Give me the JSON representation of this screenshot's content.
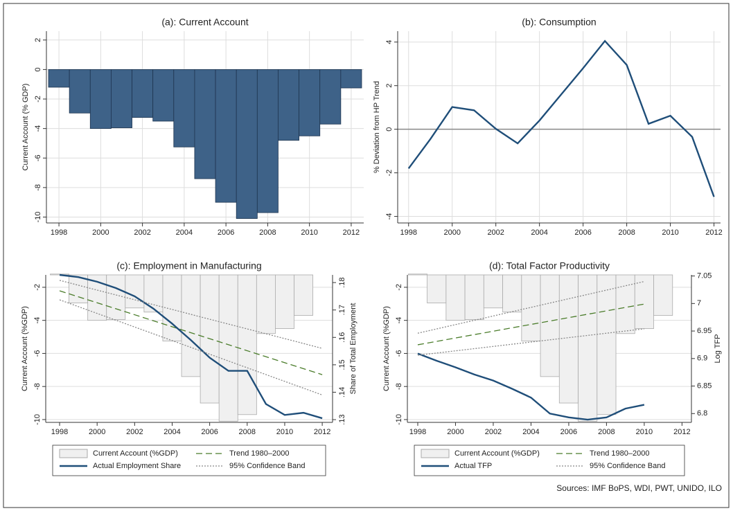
{
  "chart_data": [
    {
      "type": "bar",
      "title": "(a): Current Account",
      "ylabel": "Current Account (% GDP)",
      "color": "#3e6288",
      "x": [
        1998,
        1999,
        2000,
        2001,
        2002,
        2003,
        2004,
        2005,
        2006,
        2007,
        2008,
        2009,
        2010,
        2011,
        2012
      ],
      "values": [
        -1.2,
        -2.95,
        -4.0,
        -3.95,
        -3.25,
        -3.5,
        -5.25,
        -7.4,
        -9.0,
        -10.1,
        -9.7,
        -4.8,
        -4.5,
        -3.7,
        -1.25
      ],
      "xlim": [
        1997.4,
        2012.6
      ],
      "xticks": [
        1998,
        2000,
        2002,
        2004,
        2006,
        2008,
        2010,
        2012
      ],
      "ylim": [
        -10.4,
        2.6
      ],
      "yticks": [
        -10,
        -8,
        -6,
        -4,
        -2,
        0,
        2
      ],
      "grid": true
    },
    {
      "type": "line",
      "title": "(b): Consumption",
      "ylabel": "% Deviation from HP Trend",
      "color": "#1f4e79",
      "x": [
        1998,
        1999,
        2000,
        2001,
        2002,
        2003,
        2004,
        2005,
        2006,
        2007,
        2008,
        2009,
        2010,
        2011,
        2012
      ],
      "values": [
        -1.8,
        -0.45,
        1.02,
        0.87,
        0.02,
        -0.65,
        0.4,
        1.6,
        2.8,
        4.05,
        2.95,
        0.25,
        0.62,
        -0.35,
        -3.1
      ],
      "xlim": [
        1997.5,
        2012.3
      ],
      "xticks": [
        1998,
        2000,
        2002,
        2004,
        2006,
        2008,
        2010,
        2012
      ],
      "ylim": [
        -4.3,
        4.5
      ],
      "yticks": [
        -4,
        -2,
        0,
        2,
        4
      ],
      "grid": true,
      "zero_line": true
    },
    {
      "type": "combo",
      "title": "(c): Employment in Manufacturing",
      "ylabel": "Current Account (%GDP)",
      "y2label": "Share of Total Employment",
      "x": [
        1998,
        1999,
        2000,
        2001,
        2002,
        2003,
        2004,
        2005,
        2006,
        2007,
        2008,
        2009,
        2010,
        2011,
        2012
      ],
      "series": [
        {
          "name": "Current Account (%GDP)",
          "type": "bar",
          "color": "#f0f0f0",
          "values": [
            -1.2,
            -2.95,
            -4.0,
            -3.95,
            -3.25,
            -3.5,
            -5.25,
            -7.4,
            -9.0,
            -10.1,
            -9.7,
            -4.8,
            -4.5,
            -3.7,
            -1.25
          ]
        },
        {
          "name": "Trend 1980–2000",
          "color": "#4a7c2a",
          "style": "dashed",
          "axis": "y2",
          "x": [
            1998,
            2012
          ],
          "values": [
            0.177,
            0.1464
          ]
        },
        {
          "name": "Actual Employment Share",
          "color": "#1f4e79",
          "axis": "y2",
          "values": [
            0.1828,
            0.182,
            0.1803,
            0.178,
            0.175,
            0.1705,
            0.165,
            0.159,
            0.1526,
            0.1478,
            0.1478,
            0.1357,
            0.1317,
            0.1325,
            0.1305
          ]
        },
        {
          "name": "95% Confidence Band",
          "color": "#888888",
          "style": "dotted",
          "axis": "y2",
          "x": [
            1998,
            2012
          ],
          "values": [
            0.1808,
            0.156
          ],
          "lower": [
            0.1737,
            0.139
          ]
        }
      ],
      "xlim": [
        1997.26,
        2012.55
      ],
      "xticks": [
        1998,
        2000,
        2002,
        2004,
        2006,
        2008,
        2010,
        2012
      ],
      "ylim": [
        -10.17,
        -1.25
      ],
      "yticks": [
        -10,
        -8,
        -6,
        -4,
        -2
      ],
      "y2lim": [
        0.129,
        0.1828
      ],
      "y2ticks": [
        {
          "value": 0.13,
          "label": ".13"
        },
        {
          "value": 0.14,
          "label": ".14"
        },
        {
          "value": 0.15,
          "label": ".15"
        },
        {
          "value": 0.16,
          "label": ".16"
        },
        {
          "value": 0.17,
          "label": ".17"
        },
        {
          "value": 0.18,
          "label": ".18"
        }
      ],
      "grid": "y",
      "legend": "bottom"
    },
    {
      "type": "combo",
      "title": "(d): Total Factor Productivity",
      "ylabel": "Current Account (%GDP)",
      "y2label": "Log TFP",
      "x": [
        1998,
        1999,
        2000,
        2001,
        2002,
        2003,
        2004,
        2005,
        2006,
        2007,
        2008,
        2009,
        2010,
        2011,
        2012
      ],
      "series": [
        {
          "name": "Current Account (%GDP)",
          "type": "bar",
          "color": "#f0f0f0",
          "values": [
            -1.2,
            -2.95,
            -4.0,
            -3.95,
            -3.25,
            -3.5,
            -5.25,
            -7.4,
            -9.0,
            -10.1,
            -9.7,
            -4.8,
            -4.5,
            -3.7,
            -1.25
          ]
        },
        {
          "name": "Trend 1980–2000",
          "color": "#4a7c2a",
          "style": "dashed",
          "axis": "y2",
          "x": [
            1998,
            2010
          ],
          "values": [
            6.925,
            6.999
          ]
        },
        {
          "name": "Actual TFP",
          "color": "#1f4e79",
          "axis": "y2",
          "x": [
            1998,
            1999,
            2000,
            2001,
            2002,
            2003,
            2004,
            2005,
            2006,
            2007,
            2008,
            2009,
            2010
          ],
          "values": [
            6.909,
            6.896,
            6.884,
            6.871,
            6.86,
            6.845,
            6.829,
            6.8,
            6.793,
            6.789,
            6.793,
            6.809,
            6.816
          ]
        },
        {
          "name": "95% Confidence Band",
          "color": "#888888",
          "style": "dotted",
          "axis": "y2",
          "x": [
            1998,
            2010
          ],
          "values": [
            6.946,
            7.04
          ],
          "lower": [
            6.906,
            6.954
          ]
        }
      ],
      "xlim": [
        1997.45,
        2012.5
      ],
      "xticks": [
        1998,
        2000,
        2002,
        2004,
        2006,
        2008,
        2010,
        2012
      ],
      "ylim": [
        -10.17,
        -1.25
      ],
      "yticks": [
        -10,
        -8,
        -6,
        -4,
        -2
      ],
      "y2lim": [
        6.784,
        7.052
      ],
      "y2ticks": [
        6.8,
        6.85,
        6.9,
        6.95,
        7,
        7.05
      ],
      "grid": "y",
      "legend": "bottom"
    }
  ],
  "source": "Sources: IMF BoPS, WDI, PWT, UNIDO, ILO"
}
